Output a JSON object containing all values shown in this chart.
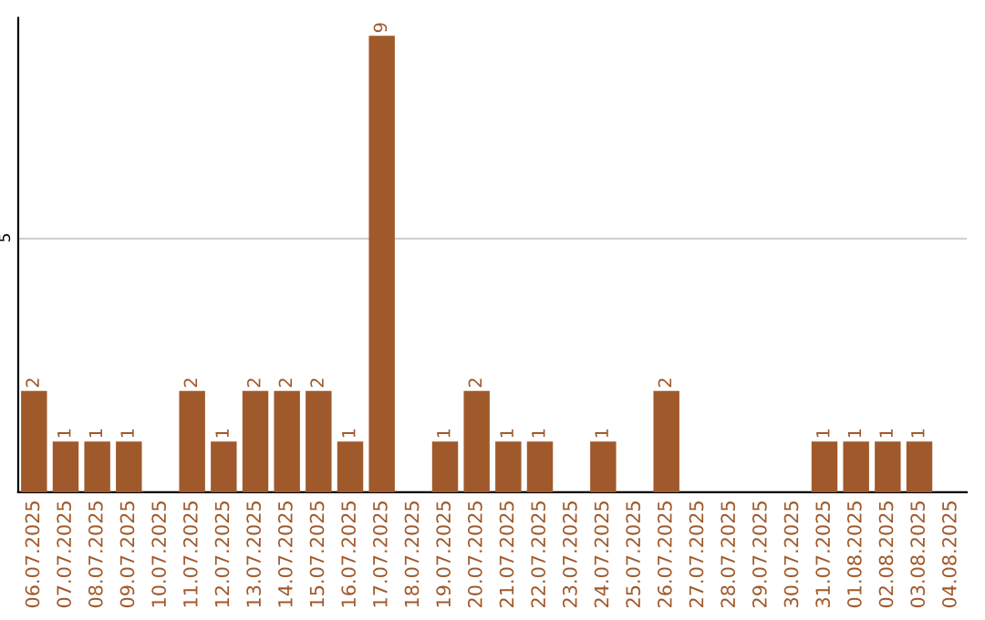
{
  "chart_data": {
    "type": "bar",
    "categories": [
      "06.07.2025",
      "07.07.2025",
      "08.07.2025",
      "09.07.2025",
      "10.07.2025",
      "11.07.2025",
      "12.07.2025",
      "13.07.2025",
      "14.07.2025",
      "15.07.2025",
      "16.07.2025",
      "17.07.2025",
      "18.07.2025",
      "19.07.2025",
      "20.07.2025",
      "21.07.2025",
      "22.07.2025",
      "23.07.2025",
      "24.07.2025",
      "25.07.2025",
      "26.07.2025",
      "27.07.2025",
      "28.07.2025",
      "29.07.2025",
      "30.07.2025",
      "31.07.2025",
      "01.08.2025",
      "02.08.2025",
      "03.08.2025",
      "04.08.2025"
    ],
    "values": [
      2,
      1,
      1,
      1,
      0,
      2,
      1,
      2,
      2,
      2,
      1,
      9,
      0,
      1,
      2,
      1,
      1,
      0,
      1,
      0,
      2,
      0,
      0,
      0,
      0,
      1,
      1,
      1,
      1,
      0
    ],
    "value_labels": [
      "2",
      "1",
      "1",
      "1",
      null,
      "2",
      "1",
      "2",
      "2",
      "2",
      "1",
      "9",
      null,
      "1",
      "2",
      "1",
      "1",
      null,
      "1",
      null,
      "2",
      null,
      null,
      null,
      null,
      "1",
      "1",
      "1",
      "1",
      null
    ],
    "color": "#a0592b",
    "ylim": [
      0,
      9.35
    ],
    "yticks": [
      {
        "value": 0,
        "label": null
      },
      5
    ],
    "grid": "y"
  }
}
